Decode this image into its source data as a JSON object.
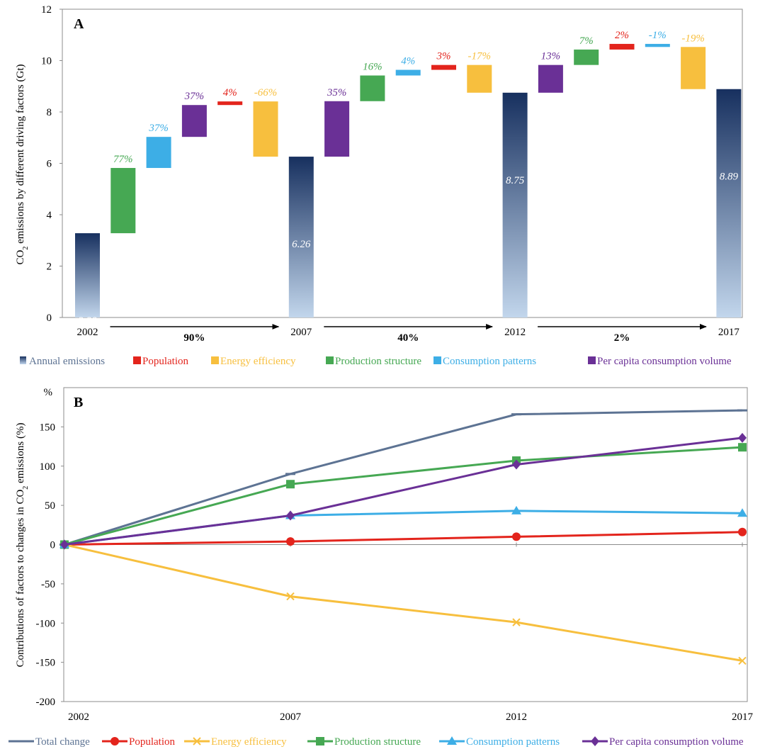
{
  "colors": {
    "annual_top": "#17305f",
    "annual_bottom": "#c2d6ec",
    "total_change": "#5d7393",
    "population": "#e3241c",
    "energy_efficiency": "#f7bf3e",
    "production_structure": "#46a853",
    "consumption_patterns": "#3daee6",
    "per_capita": "#6a3096"
  },
  "chart_data": [
    {
      "type": "bar",
      "panel_label": "A",
      "ylabel_parts": [
        "CO",
        "2",
        " emissions by different driving factors (Gt)"
      ],
      "ylim": [
        0,
        12
      ],
      "yticks": [
        "0",
        "2",
        "4",
        "6",
        "8",
        "10",
        "12"
      ],
      "year_labels": [
        "2002",
        "2007",
        "2012",
        "2017"
      ],
      "annual_emissions": [
        {
          "year": "2002",
          "value": 3.28,
          "label": "3.28"
        },
        {
          "year": "2007",
          "value": 6.26,
          "label": "6.26"
        },
        {
          "year": "2012",
          "value": 8.75,
          "label": "8.75"
        },
        {
          "year": "2017",
          "value": 8.89,
          "label": "8.89"
        }
      ],
      "increments": [
        {
          "factor": "production_structure",
          "from": 3.28,
          "to": 5.82,
          "label": "77%"
        },
        {
          "factor": "consumption_patterns",
          "from": 5.82,
          "to": 7.03,
          "label": "37%"
        },
        {
          "factor": "per_capita",
          "from": 7.03,
          "to": 8.27,
          "label": "37%"
        },
        {
          "factor": "population",
          "from": 8.27,
          "to": 8.41,
          "label": "4%"
        },
        {
          "factor": "energy_efficiency",
          "from": 8.41,
          "to": 6.26,
          "label": "-66%"
        },
        {
          "factor": "per_capita",
          "from": 6.26,
          "to": 8.42,
          "label": "35%"
        },
        {
          "factor": "production_structure",
          "from": 8.42,
          "to": 9.42,
          "label": "16%"
        },
        {
          "factor": "consumption_patterns",
          "from": 9.42,
          "to": 9.64,
          "label": "4%"
        },
        {
          "factor": "population",
          "from": 9.64,
          "to": 9.83,
          "label": "3%"
        },
        {
          "factor": "energy_efficiency",
          "from": 9.83,
          "to": 8.75,
          "label": "-17%"
        },
        {
          "factor": "per_capita",
          "from": 8.75,
          "to": 9.83,
          "label": "13%"
        },
        {
          "factor": "production_structure",
          "from": 9.83,
          "to": 10.43,
          "label": "7%"
        },
        {
          "factor": "population",
          "from": 10.43,
          "to": 10.65,
          "label": "2%"
        },
        {
          "factor": "consumption_patterns",
          "from": 10.65,
          "to": 10.53,
          "label": "-1%"
        },
        {
          "factor": "energy_efficiency",
          "from": 10.53,
          "to": 8.89,
          "label": "-19%"
        }
      ],
      "period_changes": [
        "90%",
        "40%",
        "2%"
      ],
      "legend": [
        {
          "key": "annual",
          "label": "Annual emissions"
        },
        {
          "key": "population",
          "label": "Population"
        },
        {
          "key": "energy_efficiency",
          "label": "Energy efficiency"
        },
        {
          "key": "production_structure",
          "label": "Production structure"
        },
        {
          "key": "consumption_patterns",
          "label": "Consumption patterns"
        },
        {
          "key": "per_capita",
          "label": "Per capita consumption volume"
        }
      ]
    },
    {
      "type": "line",
      "panel_label": "B",
      "ylabel_parts": [
        "Contributions of factors to changes in CO",
        "2",
        " emissions (%)"
      ],
      "y_unit": "%",
      "ylim": [
        -200,
        200
      ],
      "yticks": [
        "-200",
        "-150",
        "-100",
        "-50",
        "0",
        "50",
        "100",
        "150"
      ],
      "x": [
        "2002",
        "2007",
        "2012",
        "2017"
      ],
      "series": [
        {
          "key": "total_change",
          "name": "Total change",
          "marker": "dash",
          "values": [
            0,
            90,
            166,
            171
          ]
        },
        {
          "key": "population",
          "name": "Population",
          "marker": "circle",
          "values": [
            0,
            4,
            10,
            16
          ]
        },
        {
          "key": "energy_efficiency",
          "name": "Energy efficiency",
          "marker": "cross",
          "values": [
            0,
            -66,
            -99,
            -148
          ]
        },
        {
          "key": "production_structure",
          "name": "Production structure",
          "marker": "square",
          "values": [
            0,
            77,
            107,
            124
          ]
        },
        {
          "key": "consumption_patterns",
          "name": "Consumption patterns",
          "marker": "triangle",
          "values": [
            0,
            37,
            43,
            40
          ]
        },
        {
          "key": "per_capita",
          "name": "Per capita consumption volume",
          "marker": "diamond",
          "values": [
            0,
            37,
            102,
            136
          ]
        }
      ]
    }
  ]
}
